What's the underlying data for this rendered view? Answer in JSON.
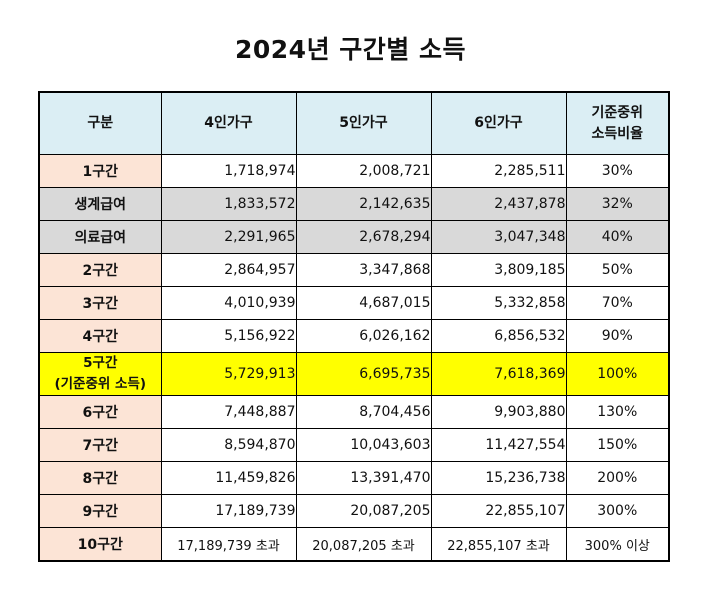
{
  "title": "2024년 구간별 소득",
  "headers": {
    "category": "구분",
    "h4": "4인가구",
    "h5": "5인가구",
    "h6": "6인가구",
    "ratio_line1": "기준중위",
    "ratio_line2": "소득비율"
  },
  "rows": [
    {
      "label": "1구간",
      "v4": "1,718,974",
      "v5": "2,008,721",
      "v6": "2,285,511",
      "ratio": "30%"
    },
    {
      "label": "생계급여",
      "v4": "1,833,572",
      "v5": "2,142,635",
      "v6": "2,437,878",
      "ratio": "32%"
    },
    {
      "label": "의료급여",
      "v4": "2,291,965",
      "v5": "2,678,294",
      "v6": "3,047,348",
      "ratio": "40%"
    },
    {
      "label": "2구간",
      "v4": "2,864,957",
      "v5": "3,347,868",
      "v6": "3,809,185",
      "ratio": "50%"
    },
    {
      "label": "3구간",
      "v4": "4,010,939",
      "v5": "4,687,015",
      "v6": "5,332,858",
      "ratio": "70%"
    },
    {
      "label": "4구간",
      "v4": "5,156,922",
      "v5": "6,026,162",
      "v6": "6,856,532",
      "ratio": "90%"
    },
    {
      "label": "5구간",
      "label2": "(기준중위 소득)",
      "v4": "5,729,913",
      "v5": "6,695,735",
      "v6": "7,618,369",
      "ratio": "100%"
    },
    {
      "label": "6구간",
      "v4": "7,448,887",
      "v5": "8,704,456",
      "v6": "9,903,880",
      "ratio": "130%"
    },
    {
      "label": "7구간",
      "v4": "8,594,870",
      "v5": "10,043,603",
      "v6": "11,427,554",
      "ratio": "150%"
    },
    {
      "label": "8구간",
      "v4": "11,459,826",
      "v5": "13,391,470",
      "v6": "15,236,738",
      "ratio": "200%"
    },
    {
      "label": "9구간",
      "v4": "17,189,739",
      "v5": "20,087,205",
      "v6": "22,855,107",
      "ratio": "300%"
    },
    {
      "label": "10구간",
      "v4": "17,189,739 초과",
      "v5": "20,087,205 초과",
      "v6": "22,855,107 초과",
      "ratio": "300% 이상"
    }
  ]
}
